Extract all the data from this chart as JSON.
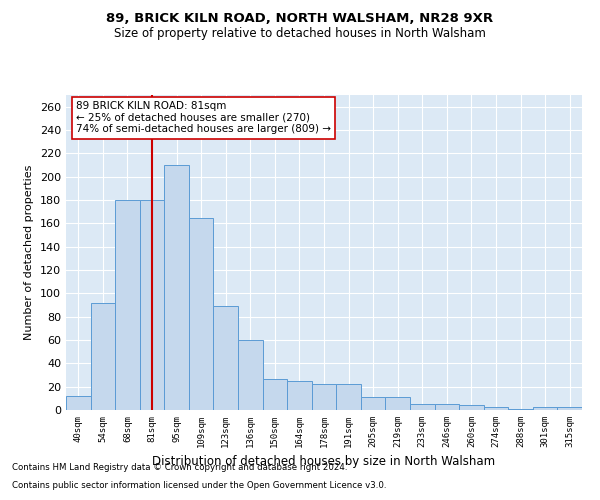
{
  "title1": "89, BRICK KILN ROAD, NORTH WALSHAM, NR28 9XR",
  "title2": "Size of property relative to detached houses in North Walsham",
  "xlabel": "Distribution of detached houses by size in North Walsham",
  "ylabel": "Number of detached properties",
  "footnote1": "Contains HM Land Registry data © Crown copyright and database right 2024.",
  "footnote2": "Contains public sector information licensed under the Open Government Licence v3.0.",
  "annotation_line1": "89 BRICK KILN ROAD: 81sqm",
  "annotation_line2": "← 25% of detached houses are smaller (270)",
  "annotation_line3": "74% of semi-detached houses are larger (809) →",
  "bar_color": "#c5d8ed",
  "bar_edge_color": "#5b9bd5",
  "vline_color": "#cc0000",
  "background_color": "#dce9f5",
  "categories": [
    "40sqm",
    "54sqm",
    "68sqm",
    "81sqm",
    "95sqm",
    "109sqm",
    "123sqm",
    "136sqm",
    "150sqm",
    "164sqm",
    "178sqm",
    "191sqm",
    "205sqm",
    "219sqm",
    "233sqm",
    "246sqm",
    "260sqm",
    "274sqm",
    "288sqm",
    "301sqm",
    "315sqm"
  ],
  "values": [
    12,
    92,
    180,
    180,
    210,
    165,
    89,
    60,
    27,
    25,
    22,
    22,
    11,
    11,
    5,
    5,
    4,
    3,
    1,
    3,
    3
  ],
  "vline_x_index": 3,
  "ylim": [
    0,
    270
  ],
  "yticks": [
    0,
    20,
    40,
    60,
    80,
    100,
    120,
    140,
    160,
    180,
    200,
    220,
    240,
    260
  ]
}
